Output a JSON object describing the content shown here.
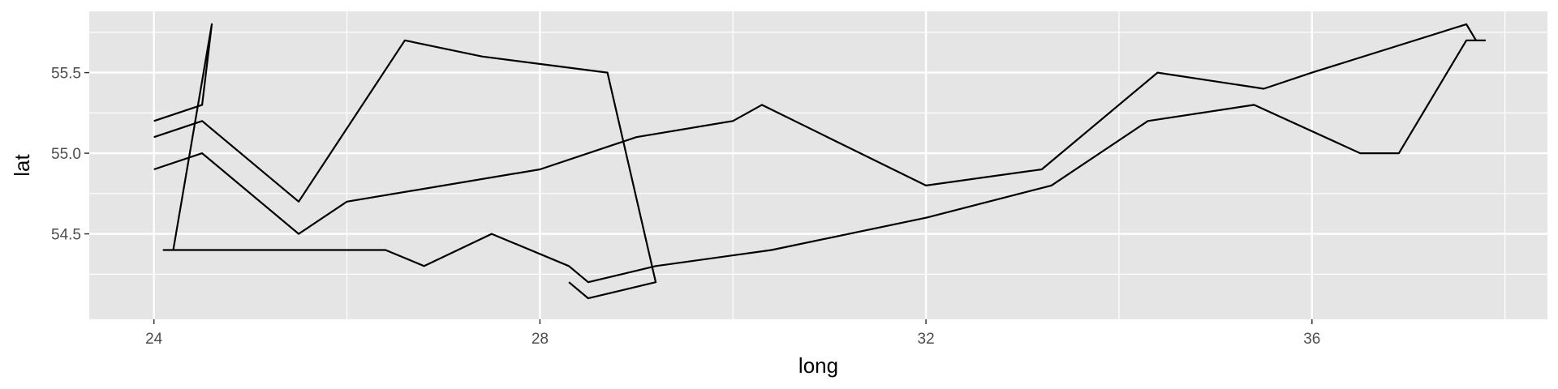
{
  "chart_data": {
    "type": "line",
    "title": "",
    "xlabel": "long",
    "ylabel": "lat",
    "xlim": [
      23.33,
      38.44
    ],
    "ylim": [
      53.97,
      55.88
    ],
    "x_ticks": [
      24,
      28,
      32,
      36
    ],
    "x_tick_labels": [
      "24",
      "28",
      "32",
      "36"
    ],
    "x_minor": [
      26,
      30,
      34,
      38
    ],
    "y_ticks": [
      54.5,
      55.0,
      55.5
    ],
    "y_tick_labels": [
      "54.5",
      "55.0",
      "55.5"
    ],
    "y_minor": [
      54.25,
      54.75,
      55.25,
      55.75
    ],
    "grid": true,
    "legend": "none",
    "colors": {
      "panel": "#e5e5e5",
      "grid": "#ffffff",
      "line": "#000000",
      "tick_label": "#4d4d4d"
    },
    "series": [
      {
        "points": [
          [
            24.0,
            55.2
          ],
          [
            24.5,
            55.3
          ],
          [
            24.6,
            55.8
          ],
          [
            24.2,
            54.4
          ],
          [
            24.1,
            54.4
          ],
          [
            26.4,
            54.4
          ],
          [
            26.8,
            54.3
          ],
          [
            27.5,
            54.5
          ],
          [
            28.3,
            54.3
          ],
          [
            28.5,
            54.2
          ],
          [
            29.2,
            54.3
          ],
          [
            30.4,
            54.4
          ],
          [
            32.0,
            54.6
          ],
          [
            33.3,
            54.8
          ],
          [
            34.3,
            55.2
          ],
          [
            35.4,
            55.3
          ],
          [
            36.5,
            55.0
          ],
          [
            36.9,
            55.0
          ],
          [
            37.6,
            55.7
          ],
          [
            37.8,
            55.7
          ]
        ]
      },
      {
        "points": [
          [
            24.0,
            55.1
          ],
          [
            24.5,
            55.2
          ],
          [
            25.5,
            54.7
          ],
          [
            26.6,
            55.7
          ],
          [
            27.4,
            55.6
          ],
          [
            28.7,
            55.5
          ],
          [
            29.2,
            54.2
          ],
          [
            28.5,
            54.1
          ],
          [
            28.3,
            54.2
          ]
        ]
      },
      {
        "points": [
          [
            24.0,
            54.9
          ],
          [
            24.5,
            55.0
          ],
          [
            25.5,
            54.5
          ],
          [
            26.0,
            54.7
          ],
          [
            28.0,
            54.9
          ],
          [
            29.0,
            55.1
          ],
          [
            30.0,
            55.2
          ],
          [
            30.3,
            55.3
          ],
          [
            32.0,
            54.8
          ],
          [
            33.2,
            54.9
          ],
          [
            34.4,
            55.5
          ],
          [
            35.5,
            55.4
          ],
          [
            36.0,
            55.5
          ],
          [
            37.6,
            55.8
          ],
          [
            37.7,
            55.7
          ]
        ]
      }
    ]
  }
}
